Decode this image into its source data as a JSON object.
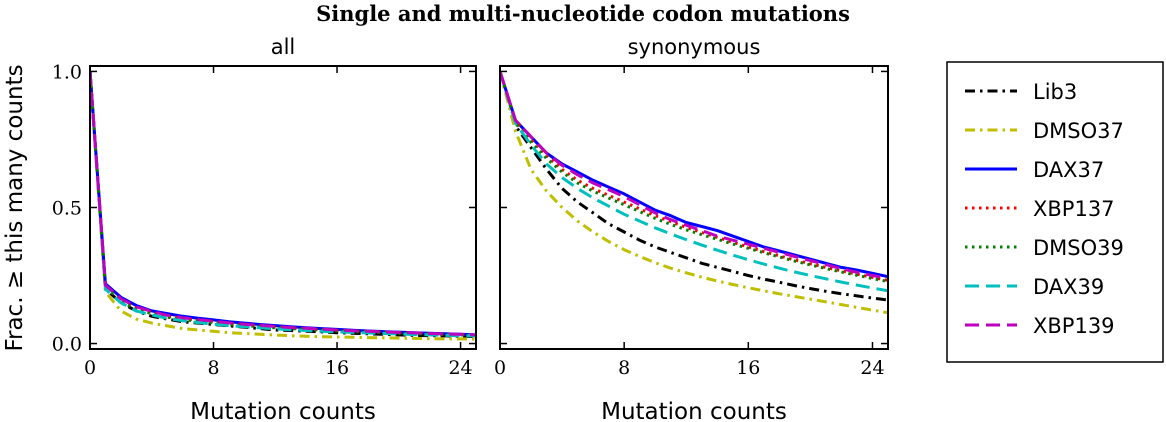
{
  "title": "Single and multi-nucleotide codon mutations",
  "ylabel": "Frac. ≥ this many counts",
  "legend": {
    "position": "right outside"
  },
  "chart_data": [
    {
      "type": "line",
      "subtitle": "all",
      "xlabel": "Mutation counts",
      "xlim": [
        0,
        25
      ],
      "ylim": [
        -0.02,
        1.02
      ],
      "xticks": [
        0,
        8,
        16,
        24
      ],
      "xtick_labels": [
        "0",
        "8",
        "16",
        "24"
      ],
      "yticks": [
        0.0,
        0.5,
        1.0
      ],
      "ytick_labels": [
        "0.0",
        "0.5",
        "1.0"
      ],
      "grid": false,
      "x": [
        0,
        1,
        2,
        3,
        4,
        5,
        6,
        7,
        8,
        9,
        10,
        11,
        12,
        13,
        14,
        15,
        16,
        17,
        18,
        19,
        20,
        21,
        22,
        23,
        24,
        25
      ],
      "series": [
        {
          "name": "Lib3",
          "color": "#000000",
          "style": "dashdot",
          "values": [
            1.0,
            0.2,
            0.15,
            0.12,
            0.1,
            0.09,
            0.08,
            0.075,
            0.07,
            0.065,
            0.06,
            0.055,
            0.05,
            0.048,
            0.045,
            0.043,
            0.04,
            0.038,
            0.036,
            0.034,
            0.032,
            0.03,
            0.029,
            0.028,
            0.027,
            0.026
          ]
        },
        {
          "name": "DMSO37",
          "color": "#bfbf00",
          "style": "dashdot",
          "values": [
            1.0,
            0.19,
            0.12,
            0.09,
            0.075,
            0.065,
            0.055,
            0.05,
            0.045,
            0.04,
            0.037,
            0.034,
            0.031,
            0.029,
            0.027,
            0.025,
            0.024,
            0.023,
            0.022,
            0.021,
            0.02,
            0.019,
            0.018,
            0.017,
            0.017,
            0.016
          ]
        },
        {
          "name": "DAX37",
          "color": "#0000ff",
          "style": "solid",
          "values": [
            1.0,
            0.22,
            0.17,
            0.14,
            0.12,
            0.11,
            0.1,
            0.093,
            0.087,
            0.08,
            0.075,
            0.07,
            0.066,
            0.062,
            0.058,
            0.055,
            0.052,
            0.049,
            0.046,
            0.044,
            0.042,
            0.04,
            0.038,
            0.036,
            0.034,
            0.032
          ]
        },
        {
          "name": "XBP137",
          "color": "#ff0000",
          "style": "dotted",
          "values": [
            1.0,
            0.21,
            0.16,
            0.13,
            0.115,
            0.1,
            0.092,
            0.085,
            0.08,
            0.074,
            0.069,
            0.065,
            0.061,
            0.057,
            0.054,
            0.051,
            0.048,
            0.046,
            0.044,
            0.042,
            0.04,
            0.038,
            0.036,
            0.034,
            0.033,
            0.031
          ]
        },
        {
          "name": "DMSO39",
          "color": "#008000",
          "style": "dotted",
          "values": [
            1.0,
            0.21,
            0.155,
            0.125,
            0.11,
            0.097,
            0.088,
            0.082,
            0.076,
            0.07,
            0.066,
            0.062,
            0.058,
            0.055,
            0.052,
            0.049,
            0.046,
            0.044,
            0.042,
            0.04,
            0.038,
            0.036,
            0.035,
            0.033,
            0.032,
            0.03
          ]
        },
        {
          "name": "DAX39",
          "color": "#00bfbf",
          "style": "dashed",
          "values": [
            1.0,
            0.2,
            0.15,
            0.12,
            0.105,
            0.093,
            0.084,
            0.077,
            0.071,
            0.066,
            0.062,
            0.058,
            0.054,
            0.051,
            0.048,
            0.045,
            0.043,
            0.041,
            0.039,
            0.037,
            0.035,
            0.033,
            0.032,
            0.03,
            0.029,
            0.028
          ]
        },
        {
          "name": "XBP139",
          "color": "#bf00bf",
          "style": "dashed",
          "values": [
            1.0,
            0.215,
            0.165,
            0.135,
            0.118,
            0.104,
            0.095,
            0.088,
            0.082,
            0.076,
            0.071,
            0.067,
            0.063,
            0.059,
            0.056,
            0.053,
            0.05,
            0.047,
            0.045,
            0.043,
            0.041,
            0.039,
            0.037,
            0.035,
            0.034,
            0.032
          ]
        }
      ]
    },
    {
      "type": "line",
      "subtitle": "synonymous",
      "xlabel": "Mutation counts",
      "xlim": [
        0,
        25
      ],
      "ylim": [
        -0.02,
        1.02
      ],
      "xticks": [
        0,
        8,
        16,
        24
      ],
      "xtick_labels": [
        "0",
        "8",
        "16",
        "24"
      ],
      "yticks": [
        0.0,
        0.5,
        1.0
      ],
      "ytick_labels": [
        "",
        "",
        ""
      ],
      "grid": false,
      "x": [
        0,
        1,
        2,
        3,
        4,
        5,
        6,
        7,
        8,
        9,
        10,
        11,
        12,
        13,
        14,
        15,
        16,
        17,
        18,
        19,
        20,
        21,
        22,
        23,
        24,
        25
      ],
      "series": [
        {
          "name": "Lib3",
          "color": "#000000",
          "style": "dashdot",
          "values": [
            1.0,
            0.8,
            0.72,
            0.64,
            0.57,
            0.52,
            0.48,
            0.44,
            0.41,
            0.38,
            0.355,
            0.335,
            0.315,
            0.295,
            0.28,
            0.265,
            0.25,
            0.237,
            0.225,
            0.213,
            0.202,
            0.192,
            0.183,
            0.175,
            0.167,
            0.16
          ]
        },
        {
          "name": "DMSO37",
          "color": "#bfbf00",
          "style": "dashdot",
          "values": [
            1.0,
            0.78,
            0.64,
            0.56,
            0.5,
            0.45,
            0.41,
            0.375,
            0.345,
            0.32,
            0.297,
            0.277,
            0.26,
            0.244,
            0.23,
            0.217,
            0.205,
            0.194,
            0.183,
            0.173,
            0.163,
            0.153,
            0.143,
            0.133,
            0.123,
            0.113
          ]
        },
        {
          "name": "DAX37",
          "color": "#0000ff",
          "style": "solid",
          "values": [
            1.0,
            0.82,
            0.76,
            0.7,
            0.66,
            0.63,
            0.6,
            0.575,
            0.55,
            0.52,
            0.49,
            0.47,
            0.445,
            0.43,
            0.415,
            0.395,
            0.375,
            0.355,
            0.34,
            0.325,
            0.31,
            0.295,
            0.28,
            0.27,
            0.258,
            0.246
          ]
        },
        {
          "name": "XBP137",
          "color": "#ff0000",
          "style": "dotted",
          "values": [
            1.0,
            0.82,
            0.75,
            0.69,
            0.64,
            0.6,
            0.57,
            0.545,
            0.52,
            0.495,
            0.47,
            0.448,
            0.427,
            0.408,
            0.39,
            0.372,
            0.355,
            0.338,
            0.322,
            0.307,
            0.293,
            0.28,
            0.267,
            0.255,
            0.243,
            0.232
          ]
        },
        {
          "name": "DMSO39",
          "color": "#008000",
          "style": "dotted",
          "values": [
            1.0,
            0.81,
            0.74,
            0.68,
            0.63,
            0.59,
            0.56,
            0.535,
            0.51,
            0.485,
            0.46,
            0.438,
            0.418,
            0.4,
            0.383,
            0.366,
            0.35,
            0.334,
            0.318,
            0.303,
            0.289,
            0.276,
            0.263,
            0.251,
            0.239,
            0.228
          ]
        },
        {
          "name": "DAX39",
          "color": "#00bfbf",
          "style": "dashed",
          "values": [
            1.0,
            0.81,
            0.73,
            0.66,
            0.61,
            0.57,
            0.535,
            0.505,
            0.475,
            0.45,
            0.425,
            0.403,
            0.382,
            0.362,
            0.343,
            0.325,
            0.308,
            0.292,
            0.277,
            0.263,
            0.25,
            0.238,
            0.226,
            0.215,
            0.204,
            0.194
          ]
        },
        {
          "name": "XBP139",
          "color": "#bf00bf",
          "style": "dashed",
          "values": [
            1.0,
            0.82,
            0.76,
            0.7,
            0.655,
            0.62,
            0.59,
            0.565,
            0.54,
            0.51,
            0.48,
            0.455,
            0.435,
            0.415,
            0.395,
            0.38,
            0.365,
            0.35,
            0.335,
            0.32,
            0.305,
            0.29,
            0.275,
            0.262,
            0.25,
            0.24
          ]
        }
      ]
    }
  ]
}
